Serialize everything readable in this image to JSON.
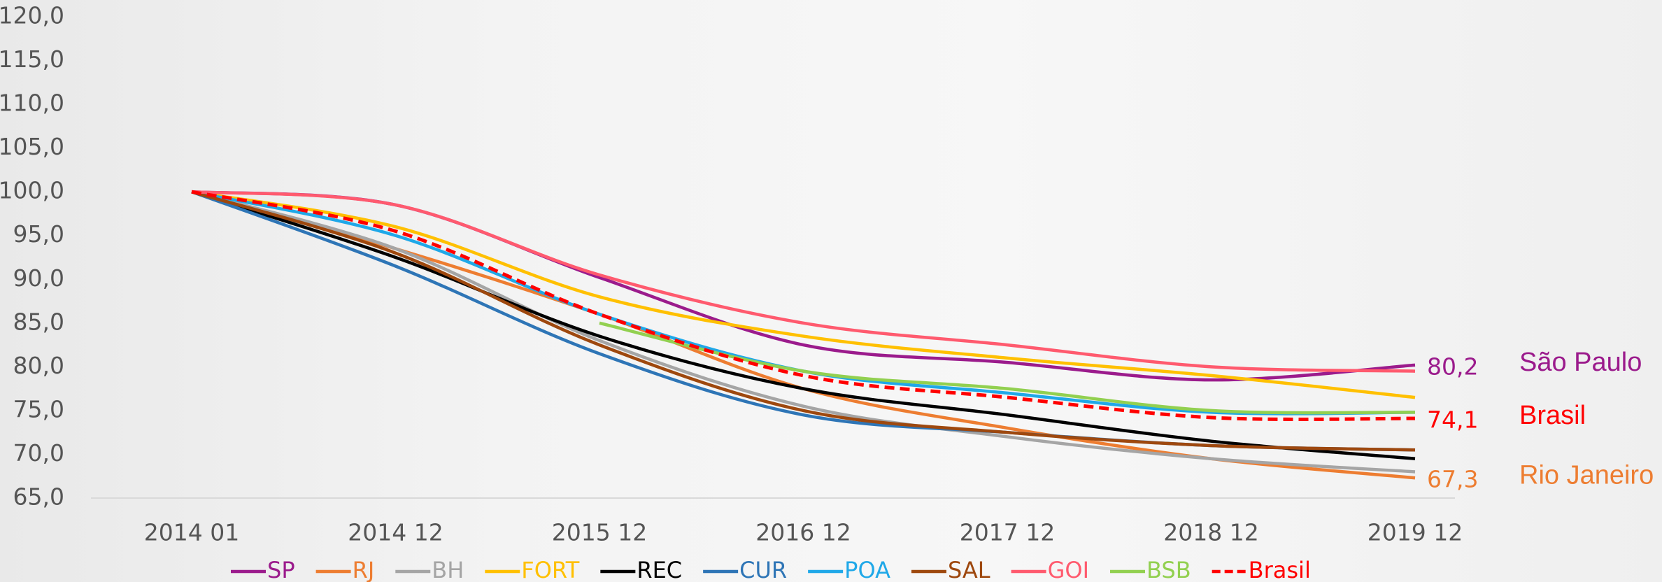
{
  "chart_data": {
    "type": "line",
    "categories": [
      "2014 01",
      "2014 12",
      "2015 12",
      "2016 12",
      "2017 12",
      "2018 12",
      "2019 12"
    ],
    "ylim": [
      65,
      120
    ],
    "yticks": [
      {
        "value": 65,
        "label": "65,0"
      },
      {
        "value": 70,
        "label": "70,0"
      },
      {
        "value": 75,
        "label": "75,0"
      },
      {
        "value": 80,
        "label": "80,0"
      },
      {
        "value": 85,
        "label": "85,0"
      },
      {
        "value": 90,
        "label": "90,0"
      },
      {
        "value": 95,
        "label": "95,0"
      },
      {
        "value": 100,
        "label": "100,0"
      },
      {
        "value": 105,
        "label": "105,0"
      },
      {
        "value": 110,
        "label": "110,0"
      },
      {
        "value": 115,
        "label": "115,0"
      },
      {
        "value": 120,
        "label": "120,0"
      }
    ],
    "grid": false,
    "legend": "bottom",
    "series": [
      {
        "name": "SP",
        "color": "#9b1b8c",
        "values": [
          100,
          98.5,
          90.2,
          82.5,
          80.5,
          78.5,
          80.2
        ],
        "value_labels": [
          null,
          null,
          null,
          null,
          null,
          null,
          "80,2"
        ],
        "annotation": "São Paulo"
      },
      {
        "name": "RJ",
        "color": "#ed7d31",
        "values": [
          100,
          93.5,
          86,
          77.5,
          73,
          69.5,
          67.3
        ],
        "value_labels": [
          null,
          null,
          null,
          null,
          null,
          null,
          "67,3"
        ],
        "annotation": "Rio Janeiro"
      },
      {
        "name": "BH",
        "color": "#a5a5a5",
        "values": [
          100,
          93.5,
          83,
          75.5,
          72,
          69.5,
          68
        ]
      },
      {
        "name": "FORT",
        "color": "#ffc000",
        "values": [
          100,
          96,
          88,
          83.5,
          81,
          79,
          76.5
        ]
      },
      {
        "name": "REC",
        "color": "#000000",
        "values": [
          100,
          92.5,
          83.5,
          77.5,
          74.5,
          71.5,
          69.5
        ]
      },
      {
        "name": "CUR",
        "color": "#2e75b6",
        "values": [
          100,
          91.5,
          81.5,
          74.5,
          72.5,
          71,
          70.5
        ]
      },
      {
        "name": "POA",
        "color": "#1fa8e8",
        "values": [
          100,
          95,
          86,
          79.5,
          77,
          74.8,
          74.8
        ]
      },
      {
        "name": "SAL",
        "color": "#9e480e",
        "values": [
          100,
          93,
          82.5,
          75,
          72.5,
          71,
          70.5
        ]
      },
      {
        "name": "GOI",
        "color": "#ff5a6e",
        "values": [
          100,
          98.5,
          90.5,
          85,
          82.5,
          80,
          79.5
        ]
      },
      {
        "name": "BSB",
        "color": "#92d050",
        "values": [
          null,
          null,
          85,
          79.5,
          77.5,
          75,
          74.8
        ]
      },
      {
        "name": "Brasil",
        "color": "#ff0000",
        "dashed": true,
        "values": [
          100,
          95.5,
          86,
          79,
          76.5,
          74.2,
          74.1
        ],
        "value_labels": [
          null,
          null,
          null,
          null,
          null,
          null,
          "74,1"
        ],
        "annotation": "Brasil"
      }
    ]
  }
}
